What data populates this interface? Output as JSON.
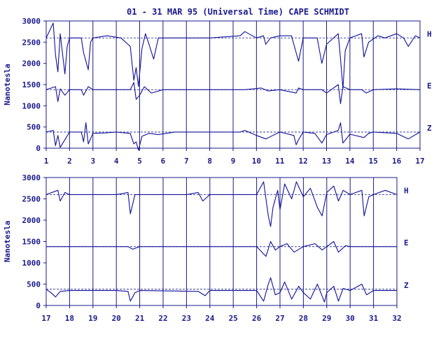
{
  "title": "01 - 31 MAR 95 (Universal Time) CAPE SCHMIDT",
  "colors": {
    "ink": "#1a1a8c",
    "trace": "#10109a",
    "background": "#ffffff"
  },
  "chart_data": [
    {
      "type": "line",
      "ylabel": "Nanotesla",
      "xlabel": "",
      "xlim": [
        1,
        17
      ],
      "ylim": [
        0,
        3000
      ],
      "y_ticks": [
        0,
        500,
        1000,
        1500,
        2000,
        2500,
        3000
      ],
      "x_ticks": [
        1,
        2,
        3,
        4,
        5,
        6,
        7,
        8,
        9,
        10,
        11,
        12,
        13,
        14,
        15,
        16,
        17
      ],
      "grid": "vertical day lines",
      "series": [
        {
          "name": "H",
          "baseline": 2600,
          "x": [
            1.0,
            1.3,
            1.4,
            1.5,
            1.6,
            1.8,
            1.9,
            2.0,
            2.5,
            2.6,
            2.8,
            2.9,
            3.0,
            3.6,
            4.2,
            4.6,
            4.75,
            4.85,
            4.95,
            5.1,
            5.25,
            5.4,
            5.6,
            5.8,
            6.5,
            8.0,
            9.3,
            9.5,
            10.0,
            10.3,
            10.4,
            10.6,
            11.0,
            11.5,
            11.7,
            11.8,
            12.0,
            12.6,
            12.8,
            13.0,
            13.5,
            13.6,
            13.7,
            13.8,
            14.0,
            14.5,
            14.6,
            14.8,
            15.2,
            15.5,
            16.0,
            16.3,
            16.5,
            16.8,
            17.0
          ],
          "y": [
            2600,
            2950,
            2200,
            1800,
            2700,
            1750,
            2400,
            2600,
            2600,
            2250,
            1850,
            2500,
            2600,
            2650,
            2600,
            2400,
            1600,
            1900,
            1450,
            2350,
            2700,
            2450,
            2100,
            2600,
            2600,
            2600,
            2650,
            2750,
            2600,
            2650,
            2450,
            2600,
            2650,
            2650,
            2250,
            2050,
            2600,
            2600,
            2000,
            2450,
            2700,
            2100,
            1400,
            2300,
            2600,
            2700,
            2150,
            2500,
            2650,
            2600,
            2700,
            2600,
            2400,
            2650,
            2600
          ]
        },
        {
          "name": "E",
          "baseline": 1380,
          "x": [
            1.0,
            1.4,
            1.5,
            1.6,
            1.8,
            2.0,
            2.5,
            2.6,
            2.8,
            3.0,
            4.6,
            4.75,
            4.85,
            5.0,
            5.2,
            5.5,
            6.0,
            9.5,
            10.2,
            10.5,
            11.0,
            11.7,
            11.8,
            12.0,
            12.8,
            13.0,
            13.5,
            13.6,
            13.7,
            14.0,
            14.5,
            14.7,
            15.0,
            16.0,
            17.0
          ],
          "y": [
            1380,
            1450,
            1100,
            1400,
            1250,
            1380,
            1380,
            1250,
            1450,
            1380,
            1380,
            1550,
            1150,
            1250,
            1450,
            1300,
            1380,
            1380,
            1420,
            1350,
            1380,
            1300,
            1420,
            1380,
            1380,
            1300,
            1500,
            1050,
            1450,
            1380,
            1380,
            1300,
            1380,
            1400,
            1380
          ]
        },
        {
          "name": "Z",
          "baseline": 380,
          "x": [
            1.0,
            1.3,
            1.4,
            1.5,
            1.6,
            1.8,
            2.0,
            2.5,
            2.6,
            2.7,
            2.8,
            3.0,
            3.5,
            4.0,
            4.6,
            4.75,
            4.85,
            4.95,
            5.1,
            5.4,
            5.8,
            6.5,
            8.0,
            9.3,
            9.5,
            10.0,
            10.4,
            11.0,
            11.6,
            11.7,
            11.8,
            12.0,
            12.5,
            12.8,
            13.0,
            13.5,
            13.6,
            13.7,
            14.0,
            14.6,
            14.8,
            15.0,
            16.0,
            16.5,
            17.0
          ],
          "y": [
            380,
            420,
            60,
            300,
            20,
            200,
            380,
            380,
            150,
            600,
            100,
            350,
            360,
            380,
            350,
            100,
            150,
            -50,
            280,
            350,
            320,
            380,
            380,
            380,
            420,
            300,
            220,
            380,
            300,
            80,
            200,
            380,
            350,
            120,
            320,
            420,
            600,
            120,
            330,
            250,
            350,
            380,
            350,
            220,
            380
          ]
        }
      ]
    },
    {
      "type": "line",
      "ylabel": "Nanotesla",
      "xlabel": "",
      "xlim": [
        17,
        32
      ],
      "ylim": [
        0,
        3000
      ],
      "y_ticks": [
        0,
        500,
        1000,
        1500,
        2000,
        2500,
        3000
      ],
      "x_ticks": [
        17,
        18,
        19,
        20,
        21,
        22,
        23,
        24,
        25,
        26,
        27,
        28,
        29,
        30,
        31,
        32
      ],
      "grid": "vertical day lines",
      "series": [
        {
          "name": "H",
          "baseline": 2600,
          "x": [
            17.0,
            17.5,
            17.6,
            17.8,
            18.0,
            20.0,
            20.5,
            20.6,
            20.8,
            21.0,
            23.0,
            23.5,
            23.7,
            24.0,
            26.0,
            26.3,
            26.5,
            26.6,
            26.7,
            26.9,
            27.0,
            27.2,
            27.5,
            27.7,
            28.0,
            28.3,
            28.6,
            28.8,
            29.0,
            29.3,
            29.5,
            29.7,
            30.0,
            30.5,
            30.6,
            30.8,
            31.0,
            31.5,
            32.0
          ],
          "y": [
            2600,
            2700,
            2450,
            2650,
            2600,
            2600,
            2650,
            2150,
            2600,
            2600,
            2600,
            2650,
            2450,
            2600,
            2600,
            2900,
            2100,
            1850,
            2300,
            2700,
            2250,
            2850,
            2500,
            2900,
            2550,
            2750,
            2300,
            2100,
            2650,
            2800,
            2450,
            2700,
            2600,
            2700,
            2100,
            2550,
            2600,
            2700,
            2600
          ]
        },
        {
          "name": "E",
          "baseline": 1380,
          "x": [
            17.0,
            20.5,
            20.7,
            21.0,
            26.0,
            26.4,
            26.6,
            26.8,
            27.0,
            27.3,
            27.6,
            28.0,
            28.5,
            28.8,
            29.0,
            29.3,
            29.5,
            29.8,
            30.0,
            31.0,
            32.0
          ],
          "y": [
            1380,
            1380,
            1320,
            1380,
            1380,
            1150,
            1500,
            1300,
            1380,
            1450,
            1250,
            1380,
            1450,
            1300,
            1380,
            1500,
            1250,
            1400,
            1380,
            1380,
            1380
          ]
        },
        {
          "name": "Z",
          "baseline": 380,
          "x": [
            17.0,
            17.2,
            17.4,
            17.6,
            18.0,
            20.0,
            20.5,
            20.6,
            20.8,
            21.0,
            23.5,
            23.8,
            24.0,
            26.0,
            26.3,
            26.5,
            26.6,
            26.8,
            27.0,
            27.2,
            27.5,
            27.8,
            28.0,
            28.3,
            28.6,
            28.9,
            29.0,
            29.3,
            29.5,
            29.7,
            30.0,
            30.5,
            30.7,
            31.0,
            32.0
          ],
          "y": [
            380,
            300,
            200,
            330,
            350,
            350,
            330,
            100,
            300,
            350,
            330,
            230,
            350,
            350,
            100,
            500,
            650,
            250,
            300,
            550,
            150,
            450,
            300,
            150,
            500,
            80,
            300,
            450,
            100,
            400,
            350,
            500,
            250,
            350,
            350
          ]
        }
      ]
    }
  ]
}
